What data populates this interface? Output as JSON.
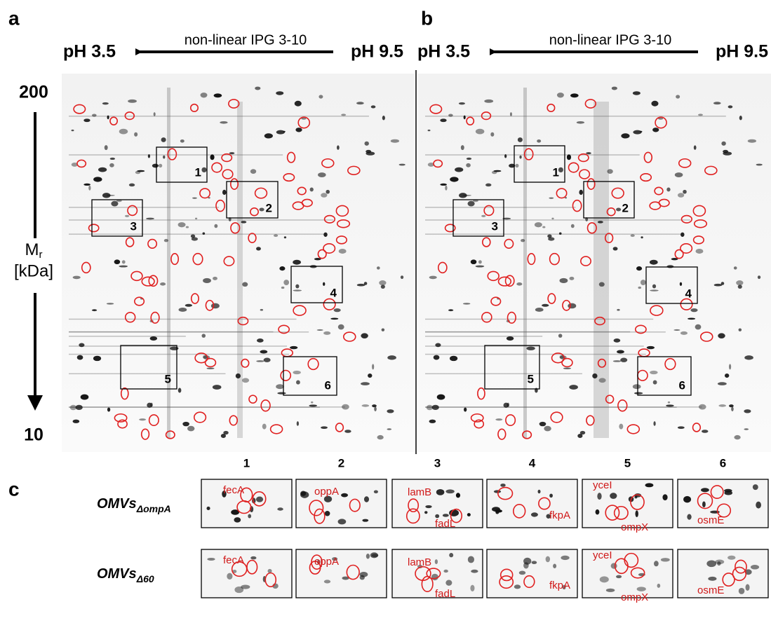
{
  "panels": [
    {
      "label": "a",
      "ph_left": "pH 3.5",
      "gradient": "non-linear IPG 3-10",
      "ph_right": "pH 9.5",
      "boxes": [
        "1",
        "2",
        "3",
        "4",
        "5",
        "6"
      ]
    },
    {
      "label": "b",
      "ph_left": "pH 3.5",
      "gradient": "non-linear IPG 3-10",
      "ph_right": "pH 9.5",
      "boxes": [
        "1",
        "2",
        "3",
        "4",
        "5",
        "6"
      ]
    }
  ],
  "mass_axis": {
    "top": "200",
    "bottom": "10",
    "label": "M",
    "label_sub": "r",
    "unit": "[kDa]"
  },
  "panel_c": {
    "label": "c",
    "columns": [
      "1",
      "2",
      "3",
      "4",
      "5",
      "6"
    ],
    "rows": [
      {
        "name": "OMVs",
        "sub": "ΔompA",
        "proteins": [
          [
            "fecA"
          ],
          [
            "oppA"
          ],
          [
            "lamB",
            "fadL"
          ],
          [
            "fkpA"
          ],
          [
            "yceI",
            "ompX"
          ],
          [
            "osmE"
          ]
        ]
      },
      {
        "name": "OMVs",
        "sub": "Δ60",
        "proteins": [
          [
            "fecA"
          ],
          [
            "oppA"
          ],
          [
            "lamB",
            "fadL"
          ],
          [
            "fkpA"
          ],
          [
            "yceI",
            "ompX"
          ],
          [
            "osmE"
          ]
        ]
      }
    ]
  }
}
